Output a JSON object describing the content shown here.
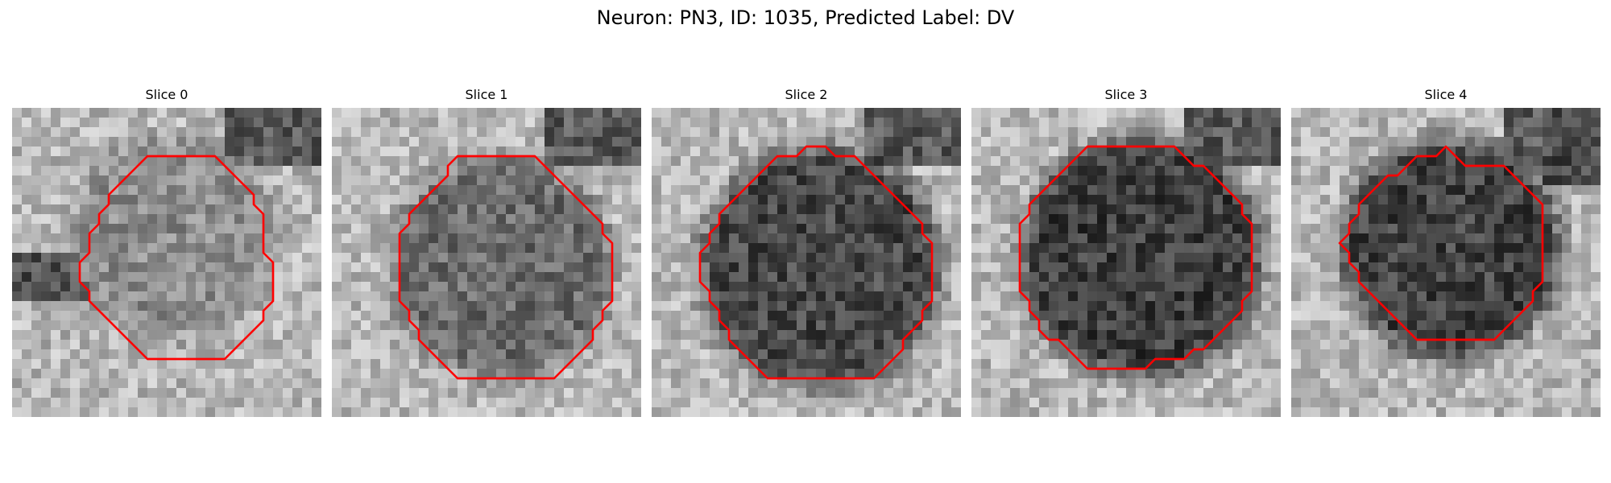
{
  "figure": {
    "title": "Neuron: PN3, ID: 1035, Predicted Label: DV",
    "contour_color": "#ff0000",
    "colormap": "gray"
  },
  "panels": [
    {
      "title": "Slice 0",
      "cell_tone": 0.55
    },
    {
      "title": "Slice 1",
      "cell_tone": 0.42
    },
    {
      "title": "Slice 2",
      "cell_tone": 0.28
    },
    {
      "title": "Slice 3",
      "cell_tone": 0.24
    },
    {
      "title": "Slice 4",
      "cell_tone": 0.26
    }
  ]
}
